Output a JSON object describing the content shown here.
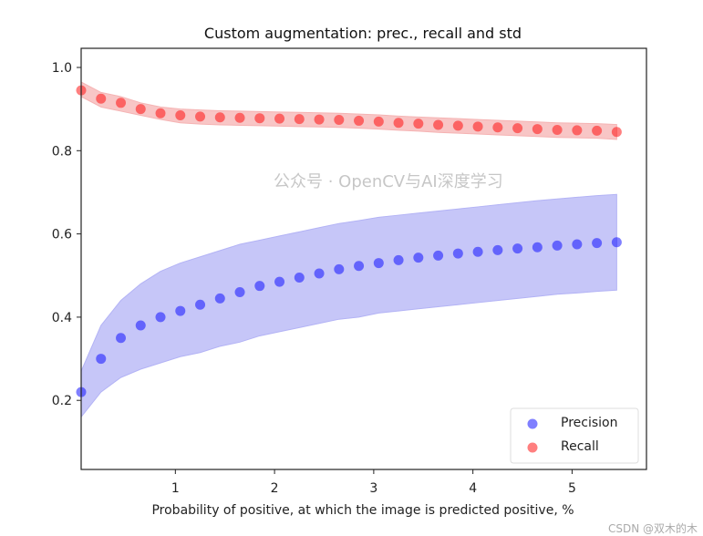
{
  "chart_data": {
    "type": "scatter",
    "title": "Custom augmentation: prec., recall and std",
    "xlabel": "Probability of positive, at which the image is predicted positive, %",
    "ylabel": "",
    "xlim": [
      0.05,
      5.75
    ],
    "ylim": [
      0.034,
      1.046
    ],
    "xticks": [
      "1",
      "2",
      "3",
      "4",
      "5"
    ],
    "yticks": [
      "0.2",
      "0.4",
      "0.6",
      "0.8",
      "1.0"
    ],
    "grid": false,
    "legend_position": "bottom-right",
    "x": [
      0.05,
      0.25,
      0.45,
      0.65,
      0.85,
      1.05,
      1.25,
      1.45,
      1.65,
      1.85,
      2.05,
      2.25,
      2.45,
      2.65,
      2.85,
      3.05,
      3.25,
      3.45,
      3.65,
      3.85,
      4.05,
      4.25,
      4.45,
      4.65,
      4.85,
      5.05,
      5.25,
      5.45
    ],
    "series": [
      {
        "name": "Precision",
        "color": "#0000ff",
        "band_color": "#b3b3f5",
        "values": [
          0.22,
          0.3,
          0.35,
          0.38,
          0.4,
          0.415,
          0.43,
          0.445,
          0.46,
          0.475,
          0.485,
          0.495,
          0.505,
          0.515,
          0.523,
          0.53,
          0.537,
          0.543,
          0.548,
          0.553,
          0.557,
          0.561,
          0.565,
          0.568,
          0.572,
          0.575,
          0.578,
          0.58
        ],
        "std_lower": [
          0.16,
          0.22,
          0.255,
          0.275,
          0.29,
          0.305,
          0.315,
          0.33,
          0.34,
          0.355,
          0.365,
          0.375,
          0.385,
          0.395,
          0.4,
          0.41,
          0.415,
          0.42,
          0.425,
          0.43,
          0.435,
          0.44,
          0.445,
          0.45,
          0.455,
          0.458,
          0.462,
          0.465
        ],
        "std_upper": [
          0.27,
          0.38,
          0.44,
          0.48,
          0.51,
          0.53,
          0.545,
          0.56,
          0.575,
          0.585,
          0.595,
          0.605,
          0.615,
          0.625,
          0.632,
          0.64,
          0.645,
          0.65,
          0.655,
          0.66,
          0.665,
          0.67,
          0.675,
          0.68,
          0.684,
          0.688,
          0.692,
          0.695
        ]
      },
      {
        "name": "Recall",
        "color": "#ff0000",
        "band_color": "#f5b3b3",
        "values": [
          0.945,
          0.925,
          0.915,
          0.9,
          0.89,
          0.885,
          0.882,
          0.88,
          0.879,
          0.878,
          0.877,
          0.876,
          0.875,
          0.874,
          0.872,
          0.87,
          0.867,
          0.865,
          0.862,
          0.86,
          0.858,
          0.856,
          0.854,
          0.852,
          0.85,
          0.849,
          0.848,
          0.845
        ],
        "std_lower": [
          0.93,
          0.905,
          0.895,
          0.885,
          0.875,
          0.867,
          0.864,
          0.862,
          0.861,
          0.86,
          0.859,
          0.858,
          0.857,
          0.856,
          0.854,
          0.852,
          0.849,
          0.847,
          0.844,
          0.842,
          0.84,
          0.838,
          0.836,
          0.834,
          0.832,
          0.831,
          0.83,
          0.827
        ],
        "std_upper": [
          0.965,
          0.94,
          0.93,
          0.915,
          0.905,
          0.9,
          0.898,
          0.896,
          0.895,
          0.894,
          0.893,
          0.892,
          0.891,
          0.89,
          0.888,
          0.886,
          0.883,
          0.881,
          0.879,
          0.877,
          0.875,
          0.873,
          0.871,
          0.869,
          0.867,
          0.866,
          0.865,
          0.863
        ]
      }
    ]
  },
  "watermark": {
    "text": "公众号 · OpenCV与AI深度学习",
    "credit": "CSDN @双木的木"
  }
}
